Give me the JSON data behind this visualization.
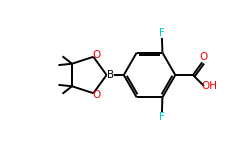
{
  "bg_color": "#ffffff",
  "bond_color": "#000000",
  "O_color": "#ff0000",
  "F_color": "#00cccc",
  "B_color": "#000000",
  "figsize": [
    2.5,
    1.5
  ],
  "dpi": 100,
  "xlim": [
    0,
    10
  ],
  "ylim": [
    0,
    6
  ]
}
